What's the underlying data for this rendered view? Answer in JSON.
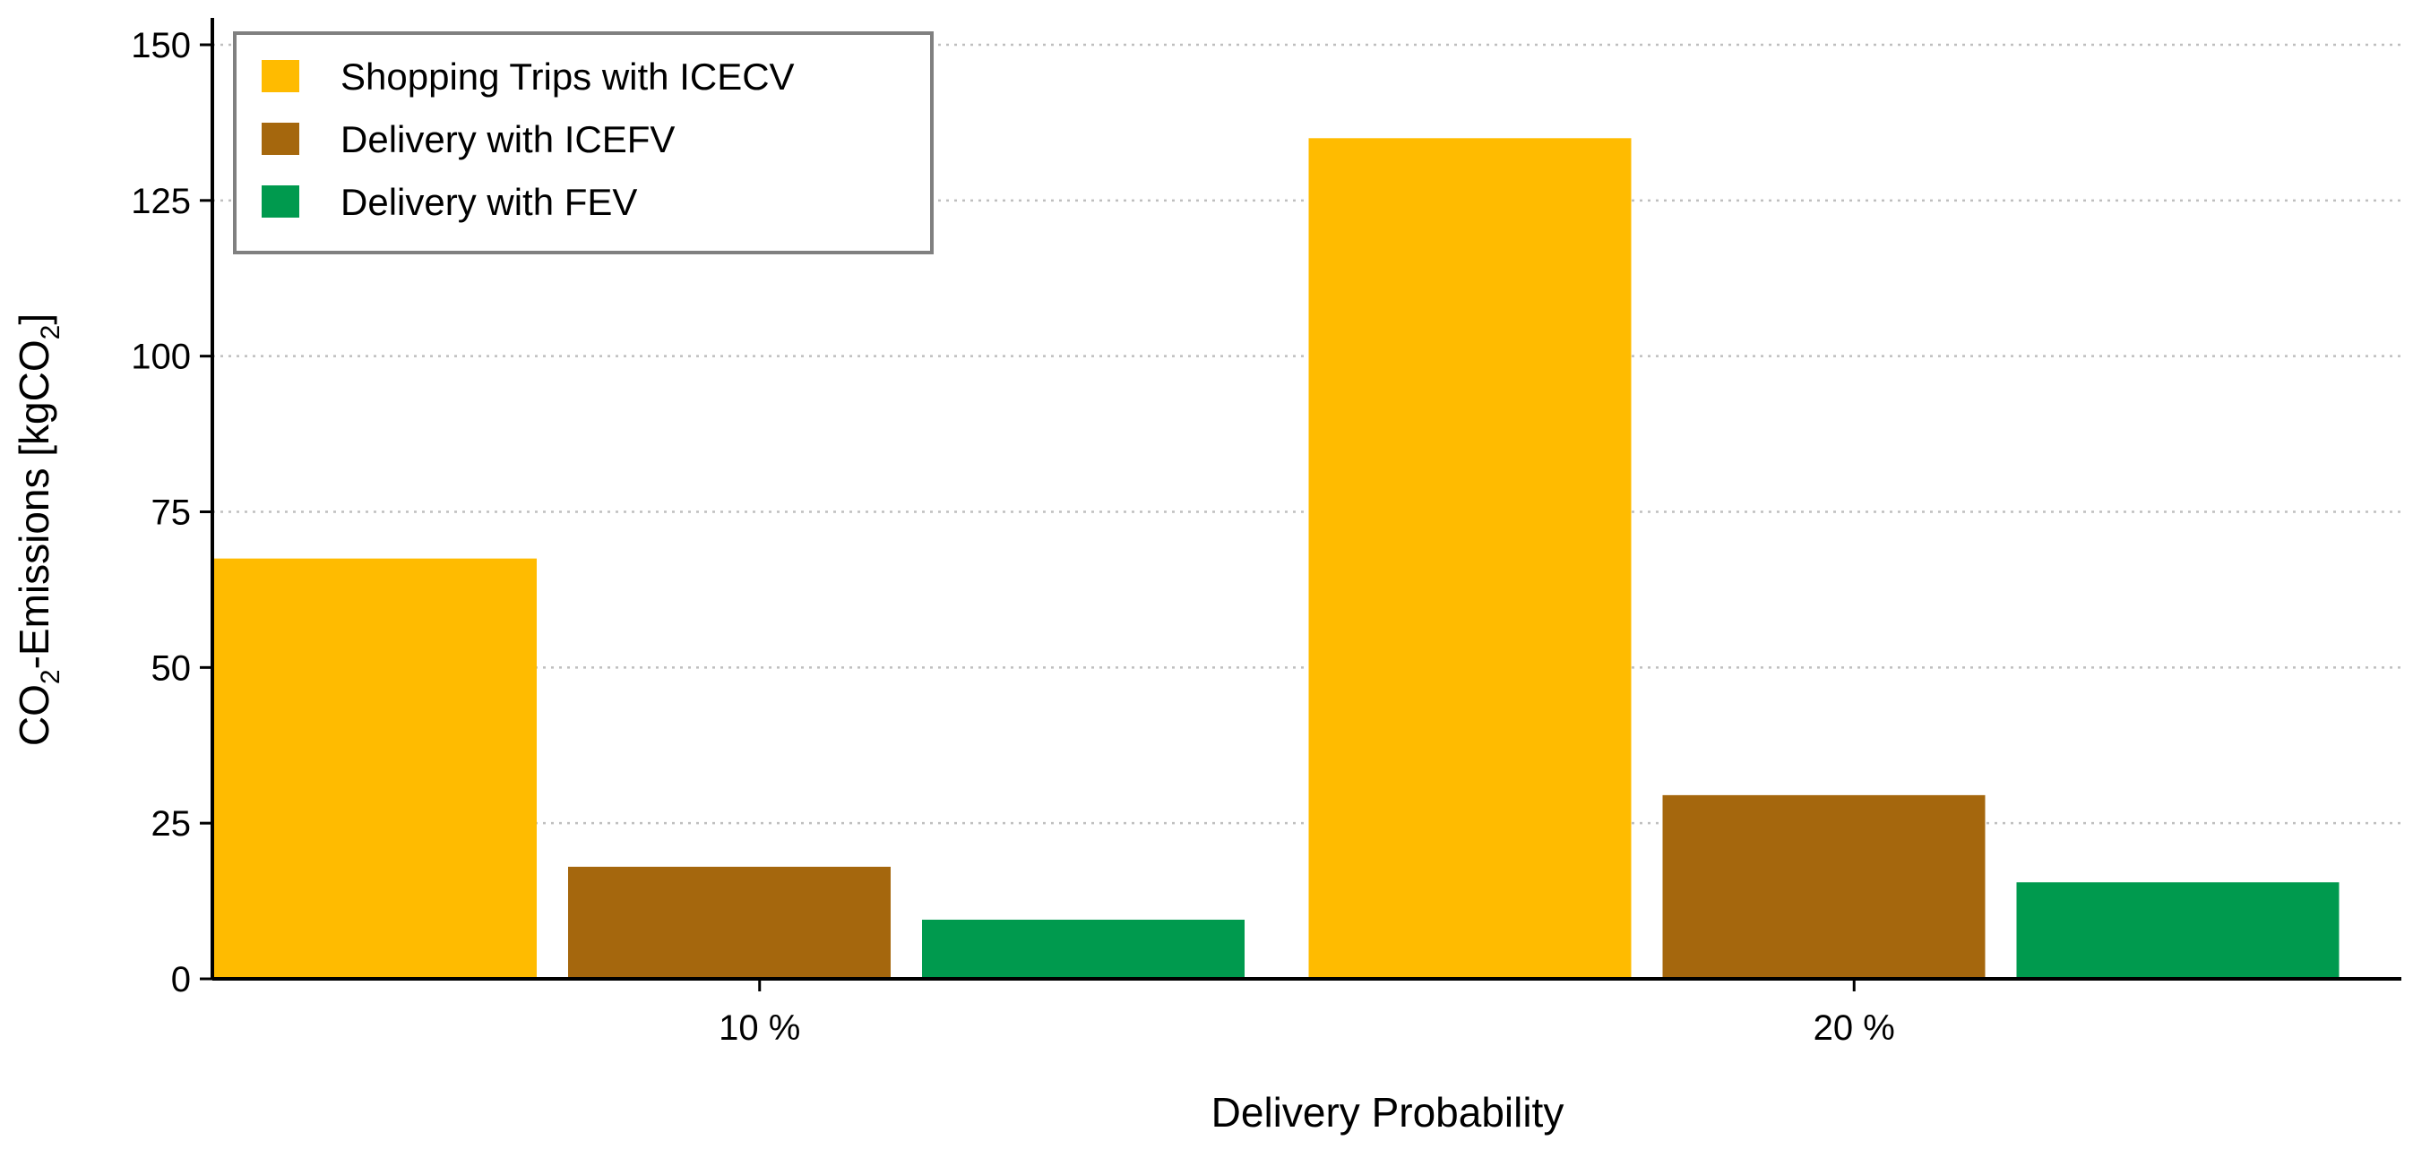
{
  "chart_data": {
    "type": "bar",
    "title": "",
    "xlabel": "Delivery Probability",
    "ylabel": {
      "prefix": "CO",
      "sub1": "2",
      "middle": "-Emissions [kgCO",
      "sub2": "2",
      "suffix": "]"
    },
    "categories": [
      "10 %",
      "20 %"
    ],
    "ylim": [
      0,
      150
    ],
    "yticks": [
      0,
      25,
      50,
      75,
      100,
      125,
      150
    ],
    "grid": "horizontal-dotted",
    "legend_position": "top-left",
    "series": [
      {
        "name": "Shopping Trips with ICECV",
        "color": "#FFBB00",
        "values": [
          67.5,
          135
        ]
      },
      {
        "name": "Delivery with ICEFV",
        "color": "#A5670D",
        "values": [
          18,
          29.5
        ]
      },
      {
        "name": "Delivery with FEV",
        "color": "#009A4E",
        "values": [
          9.5,
          15.5
        ]
      }
    ]
  }
}
